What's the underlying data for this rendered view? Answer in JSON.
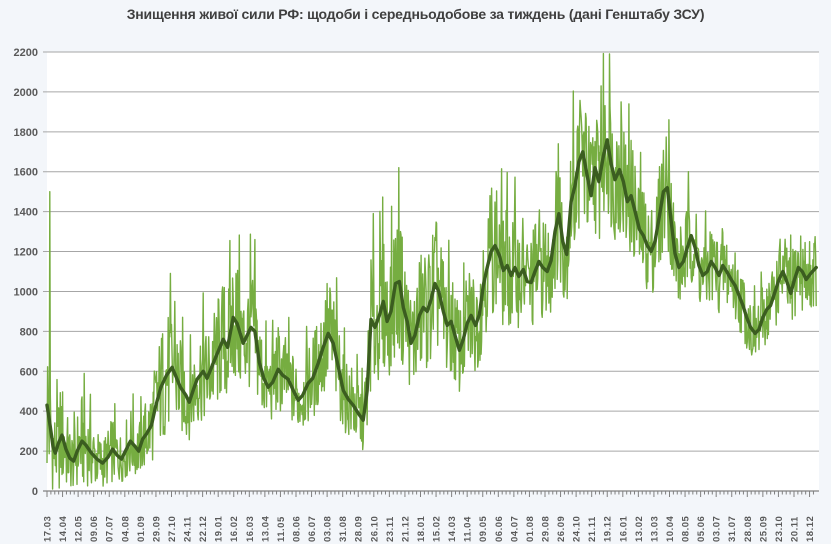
{
  "chart_data": {
    "type": "line",
    "title": "Знищення живої сили РФ: щодоби і середньодобове за тиждень (дані Генштабу ЗСУ)",
    "grid": "horizontal",
    "legend": "none",
    "colors": {
      "daily_line": "#76ad41",
      "weekly_avg_line": "#3b5d20",
      "gridline": "#a6a6a6",
      "axis_line": "#808080",
      "tick_text": "#595959",
      "title_text": "#3f3f3f",
      "plot_bg": "#ffffff",
      "page_bg": "#f3f6fa"
    },
    "series": [
      {
        "name": "щодоби",
        "color": "#76ad41",
        "style": "thin-jagged-daily"
      },
      {
        "name": "середньодобове за тиждень",
        "color": "#3b5d20",
        "style": "thick-weekly-average"
      }
    ],
    "y_axis": {
      "min": 0,
      "max": 2200,
      "step": 200,
      "tick_labels": [
        "0",
        "200",
        "400",
        "600",
        "800",
        "1000",
        "1200",
        "1400",
        "1600",
        "1800",
        "2000",
        "2200"
      ]
    },
    "x_axis": {
      "start_label": "17.03",
      "label_interval_days": 28,
      "minor_tick_days": 7,
      "days_total": 1389,
      "data_end_day": 1384,
      "tick_labels": [
        "17.03",
        "14.04",
        "12.05",
        "09.06",
        "07.07",
        "04.08",
        "01.09",
        "29.09",
        "27.10",
        "24.11",
        "22.12",
        "19.01",
        "16.02",
        "16.03",
        "13.04",
        "11.05",
        "08.06",
        "06.07",
        "03.08",
        "31.08",
        "28.09",
        "26.10",
        "23.11",
        "21.12",
        "18.01",
        "15.02",
        "14.03",
        "11.04",
        "09.05",
        "06.06",
        "04.07",
        "01.08",
        "29.08",
        "26.09",
        "24.10",
        "21.11",
        "19.12",
        "16.01",
        "13.02",
        "13.03",
        "10.04",
        "08.05",
        "05.06",
        "03.07",
        "31.07",
        "28.08",
        "25.09",
        "23.10",
        "20.11",
        "18.12"
      ]
    },
    "weekly_avg_samples": [
      [
        0,
        430
      ],
      [
        4,
        360
      ],
      [
        7,
        300
      ],
      [
        11,
        220
      ],
      [
        15,
        190
      ],
      [
        20,
        235
      ],
      [
        27,
        280
      ],
      [
        34,
        210
      ],
      [
        41,
        165
      ],
      [
        48,
        150
      ],
      [
        55,
        205
      ],
      [
        63,
        250
      ],
      [
        70,
        230
      ],
      [
        80,
        190
      ],
      [
        90,
        160
      ],
      [
        100,
        140
      ],
      [
        110,
        170
      ],
      [
        118,
        210
      ],
      [
        126,
        180
      ],
      [
        134,
        160
      ],
      [
        141,
        200
      ],
      [
        150,
        250
      ],
      [
        158,
        225
      ],
      [
        165,
        200
      ],
      [
        172,
        260
      ],
      [
        180,
        290
      ],
      [
        188,
        330
      ],
      [
        195,
        420
      ],
      [
        205,
        520
      ],
      [
        215,
        580
      ],
      [
        225,
        620
      ],
      [
        232,
        575
      ],
      [
        240,
        520
      ],
      [
        250,
        480
      ],
      [
        256,
        445
      ],
      [
        263,
        505
      ],
      [
        270,
        560
      ],
      [
        281,
        600
      ],
      [
        288,
        565
      ],
      [
        299,
        640
      ],
      [
        308,
        700
      ],
      [
        317,
        760
      ],
      [
        325,
        720
      ],
      [
        335,
        870
      ],
      [
        342,
        840
      ],
      [
        353,
        740
      ],
      [
        360,
        780
      ],
      [
        367,
        820
      ],
      [
        374,
        800
      ],
      [
        382,
        645
      ],
      [
        390,
        565
      ],
      [
        398,
        520
      ],
      [
        406,
        545
      ],
      [
        416,
        610
      ],
      [
        424,
        580
      ],
      [
        434,
        560
      ],
      [
        443,
        505
      ],
      [
        452,
        455
      ],
      [
        460,
        480
      ],
      [
        470,
        540
      ],
      [
        478,
        565
      ],
      [
        488,
        640
      ],
      [
        497,
        720
      ],
      [
        506,
        790
      ],
      [
        515,
        740
      ],
      [
        524,
        625
      ],
      [
        533,
        505
      ],
      [
        542,
        460
      ],
      [
        551,
        430
      ],
      [
        560,
        390
      ],
      [
        569,
        355
      ],
      [
        576,
        500
      ],
      [
        583,
        860
      ],
      [
        590,
        820
      ],
      [
        598,
        880
      ],
      [
        605,
        950
      ],
      [
        612,
        850
      ],
      [
        619,
        900
      ],
      [
        627,
        1040
      ],
      [
        634,
        1050
      ],
      [
        641,
        920
      ],
      [
        648,
        850
      ],
      [
        655,
        740
      ],
      [
        662,
        780
      ],
      [
        670,
        880
      ],
      [
        677,
        920
      ],
      [
        684,
        900
      ],
      [
        691,
        960
      ],
      [
        698,
        1040
      ],
      [
        705,
        1000
      ],
      [
        713,
        900
      ],
      [
        720,
        830
      ],
      [
        727,
        850
      ],
      [
        734,
        780
      ],
      [
        742,
        705
      ],
      [
        749,
        760
      ],
      [
        756,
        840
      ],
      [
        763,
        880
      ],
      [
        771,
        830
      ],
      [
        778,
        885
      ],
      [
        785,
        1030
      ],
      [
        792,
        1120
      ],
      [
        799,
        1200
      ],
      [
        806,
        1230
      ],
      [
        814,
        1180
      ],
      [
        821,
        1105
      ],
      [
        828,
        1130
      ],
      [
        835,
        1080
      ],
      [
        842,
        1120
      ],
      [
        849,
        1075
      ],
      [
        857,
        1110
      ],
      [
        864,
        1050
      ],
      [
        871,
        1045
      ],
      [
        878,
        1100
      ],
      [
        885,
        1150
      ],
      [
        892,
        1120
      ],
      [
        900,
        1100
      ],
      [
        907,
        1155
      ],
      [
        914,
        1300
      ],
      [
        921,
        1390
      ],
      [
        928,
        1250
      ],
      [
        935,
        1185
      ],
      [
        943,
        1450
      ],
      [
        950,
        1530
      ],
      [
        957,
        1650
      ],
      [
        964,
        1700
      ],
      [
        972,
        1580
      ],
      [
        979,
        1480
      ],
      [
        986,
        1620
      ],
      [
        993,
        1550
      ],
      [
        1001,
        1680
      ],
      [
        1008,
        1760
      ],
      [
        1015,
        1640
      ],
      [
        1022,
        1560
      ],
      [
        1030,
        1610
      ],
      [
        1037,
        1550
      ],
      [
        1044,
        1450
      ],
      [
        1051,
        1480
      ],
      [
        1059,
        1390
      ],
      [
        1066,
        1310
      ],
      [
        1073,
        1280
      ],
      [
        1080,
        1230
      ],
      [
        1087,
        1200
      ],
      [
        1094,
        1250
      ],
      [
        1102,
        1380
      ],
      [
        1109,
        1500
      ],
      [
        1116,
        1520
      ],
      [
        1123,
        1350
      ],
      [
        1130,
        1190
      ],
      [
        1137,
        1120
      ],
      [
        1145,
        1150
      ],
      [
        1152,
        1220
      ],
      [
        1159,
        1280
      ],
      [
        1166,
        1220
      ],
      [
        1173,
        1130
      ],
      [
        1180,
        1080
      ],
      [
        1188,
        1100
      ],
      [
        1195,
        1150
      ],
      [
        1202,
        1120
      ],
      [
        1209,
        1080
      ],
      [
        1216,
        1130
      ],
      [
        1223,
        1100
      ],
      [
        1231,
        1060
      ],
      [
        1238,
        1030
      ],
      [
        1245,
        980
      ],
      [
        1252,
        930
      ],
      [
        1259,
        870
      ],
      [
        1266,
        820
      ],
      [
        1274,
        790
      ],
      [
        1281,
        810
      ],
      [
        1288,
        870
      ],
      [
        1295,
        910
      ],
      [
        1302,
        930
      ],
      [
        1309,
        990
      ],
      [
        1317,
        1060
      ],
      [
        1324,
        1100
      ],
      [
        1331,
        1050
      ],
      [
        1338,
        990
      ],
      [
        1345,
        1060
      ],
      [
        1352,
        1120
      ],
      [
        1359,
        1100
      ],
      [
        1366,
        1060
      ],
      [
        1374,
        1090
      ],
      [
        1384,
        1120
      ]
    ],
    "daily_amplitude_samples": [
      [
        0,
        0.85
      ],
      [
        40,
        0.8
      ],
      [
        90,
        0.75
      ],
      [
        140,
        0.6
      ],
      [
        185,
        0.5
      ],
      [
        230,
        0.4
      ],
      [
        270,
        0.35
      ],
      [
        330,
        0.32
      ],
      [
        380,
        0.3
      ],
      [
        450,
        0.3
      ],
      [
        520,
        0.32
      ],
      [
        560,
        0.38
      ],
      [
        600,
        0.3
      ],
      [
        650,
        0.28
      ],
      [
        700,
        0.27
      ],
      [
        760,
        0.25
      ],
      [
        820,
        0.22
      ],
      [
        880,
        0.2
      ],
      [
        940,
        0.18
      ],
      [
        1000,
        0.17
      ],
      [
        1060,
        0.16
      ],
      [
        1120,
        0.16
      ],
      [
        1180,
        0.15
      ],
      [
        1240,
        0.15
      ],
      [
        1300,
        0.16
      ],
      [
        1384,
        0.15
      ]
    ],
    "daily_spikes": [
      [
        5,
        1500
      ],
      [
        230,
        950
      ],
      [
        340,
        1090
      ],
      [
        587,
        1390
      ],
      [
        636,
        1300
      ],
      [
        698,
        1270
      ],
      [
        797,
        1480
      ],
      [
        920,
        1740
      ],
      [
        958,
        1830
      ],
      [
        997,
        2030
      ],
      [
        1012,
        2190
      ],
      [
        1033,
        1950
      ],
      [
        1047,
        1940
      ],
      [
        1119,
        1860
      ],
      [
        1380,
        1240
      ]
    ]
  }
}
